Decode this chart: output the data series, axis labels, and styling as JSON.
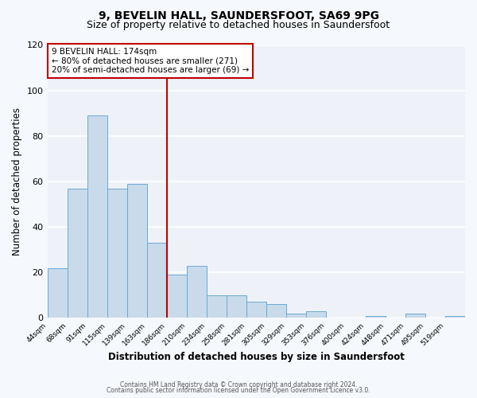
{
  "title": "9, BEVELIN HALL, SAUNDERSFOOT, SA69 9PG",
  "subtitle": "Size of property relative to detached houses in Saundersfoot",
  "xlabel": "Distribution of detached houses by size in Saundersfoot",
  "ylabel": "Number of detached properties",
  "footer_line1": "Contains HM Land Registry data © Crown copyright and database right 2024.",
  "footer_line2": "Contains public sector information licensed under the Open Government Licence v3.0.",
  "bin_labels": [
    "44sqm",
    "68sqm",
    "91sqm",
    "115sqm",
    "139sqm",
    "163sqm",
    "186sqm",
    "210sqm",
    "234sqm",
    "258sqm",
    "281sqm",
    "305sqm",
    "329sqm",
    "353sqm",
    "376sqm",
    "400sqm",
    "424sqm",
    "448sqm",
    "471sqm",
    "495sqm",
    "519sqm"
  ],
  "bar_values": [
    22,
    57,
    89,
    57,
    59,
    33,
    19,
    23,
    10,
    10,
    7,
    6,
    2,
    3,
    0,
    0,
    1,
    0,
    2,
    0,
    1
  ],
  "bar_color": "#c9daea",
  "bar_edge_color": "#6aaad4",
  "vline_index": 6,
  "vline_color": "#c00000",
  "annotation_text": "9 BEVELIN HALL: 174sqm\n← 80% of detached houses are smaller (271)\n20% of semi-detached houses are larger (69) →",
  "annotation_box_color": "#ffffff",
  "annotation_box_edge": "#c00000",
  "ylim": [
    0,
    120
  ],
  "background_color": "#f5f8fc",
  "plot_bg_color": "#eef2f8",
  "grid_color": "#ffffff",
  "title_fontsize": 10,
  "subtitle_fontsize": 9,
  "yticks": [
    0,
    20,
    40,
    60,
    80,
    100,
    120
  ]
}
